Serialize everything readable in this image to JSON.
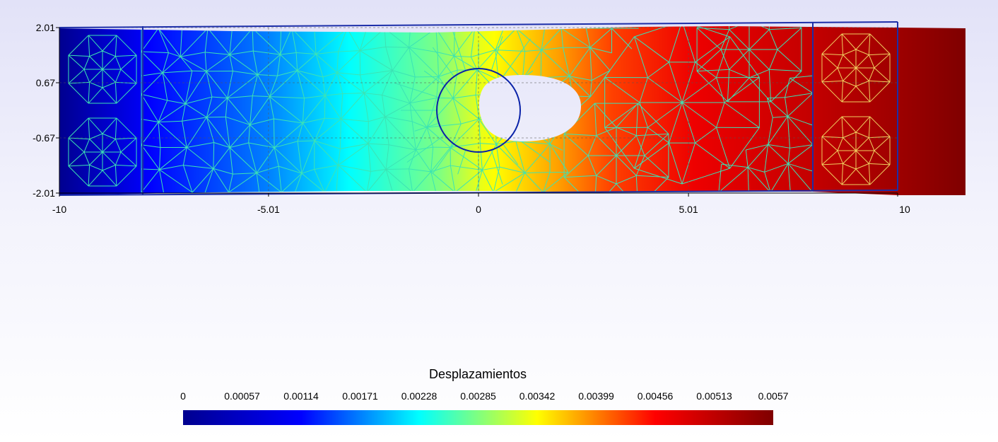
{
  "plot": {
    "x_ticks": [
      "-10",
      "-5.01",
      "0",
      "5.01",
      "10"
    ],
    "y_ticks": [
      "2.01",
      "0.67",
      "-0.67",
      "-2.01"
    ],
    "x_range": [
      -10,
      10
    ],
    "y_range": [
      -2.01,
      2.01
    ],
    "grid": "dashed",
    "hole": {
      "center": [
        0,
        0
      ],
      "radius": 1
    }
  },
  "legend": {
    "title": "Desplazamientos",
    "ticks": [
      "0",
      "0.00057",
      "0.00114",
      "0.00171",
      "0.00228",
      "0.00285",
      "0.00342",
      "0.00399",
      "0.00456",
      "0.00513",
      "0.0057"
    ],
    "range": [
      0,
      0.0057
    ],
    "colormap": [
      "#00008f",
      "#0000ff",
      "#00ffff",
      "#ffff00",
      "#ff0000",
      "#7f0000"
    ]
  },
  "colors": {
    "mesh_line": "#3ce3b4",
    "mesh_line_right": "#f0d060",
    "frame": "#1c2ea8",
    "hole_outline": "#0a22a8"
  }
}
